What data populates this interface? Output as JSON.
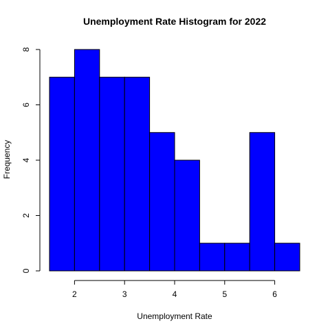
{
  "chart_data": {
    "type": "bar",
    "title": "Unemployment Rate Histogram for 2022",
    "xlabel": "Unemployment Rate",
    "ylabel": "Frequency",
    "bin_edges": [
      1.5,
      2.0,
      2.5,
      3.0,
      3.5,
      4.0,
      4.5,
      5.0,
      5.5,
      6.0,
      6.5
    ],
    "values": [
      7,
      8,
      7,
      7,
      5,
      4,
      1,
      1,
      5,
      1
    ],
    "x_ticks": [
      2,
      3,
      4,
      5,
      6
    ],
    "y_ticks": [
      0,
      2,
      4,
      6,
      8
    ],
    "xlim": [
      1.5,
      6.5
    ],
    "ylim": [
      0,
      8
    ],
    "bar_color": "#0000ff",
    "bar_border_color": "#000000",
    "grid": false
  }
}
